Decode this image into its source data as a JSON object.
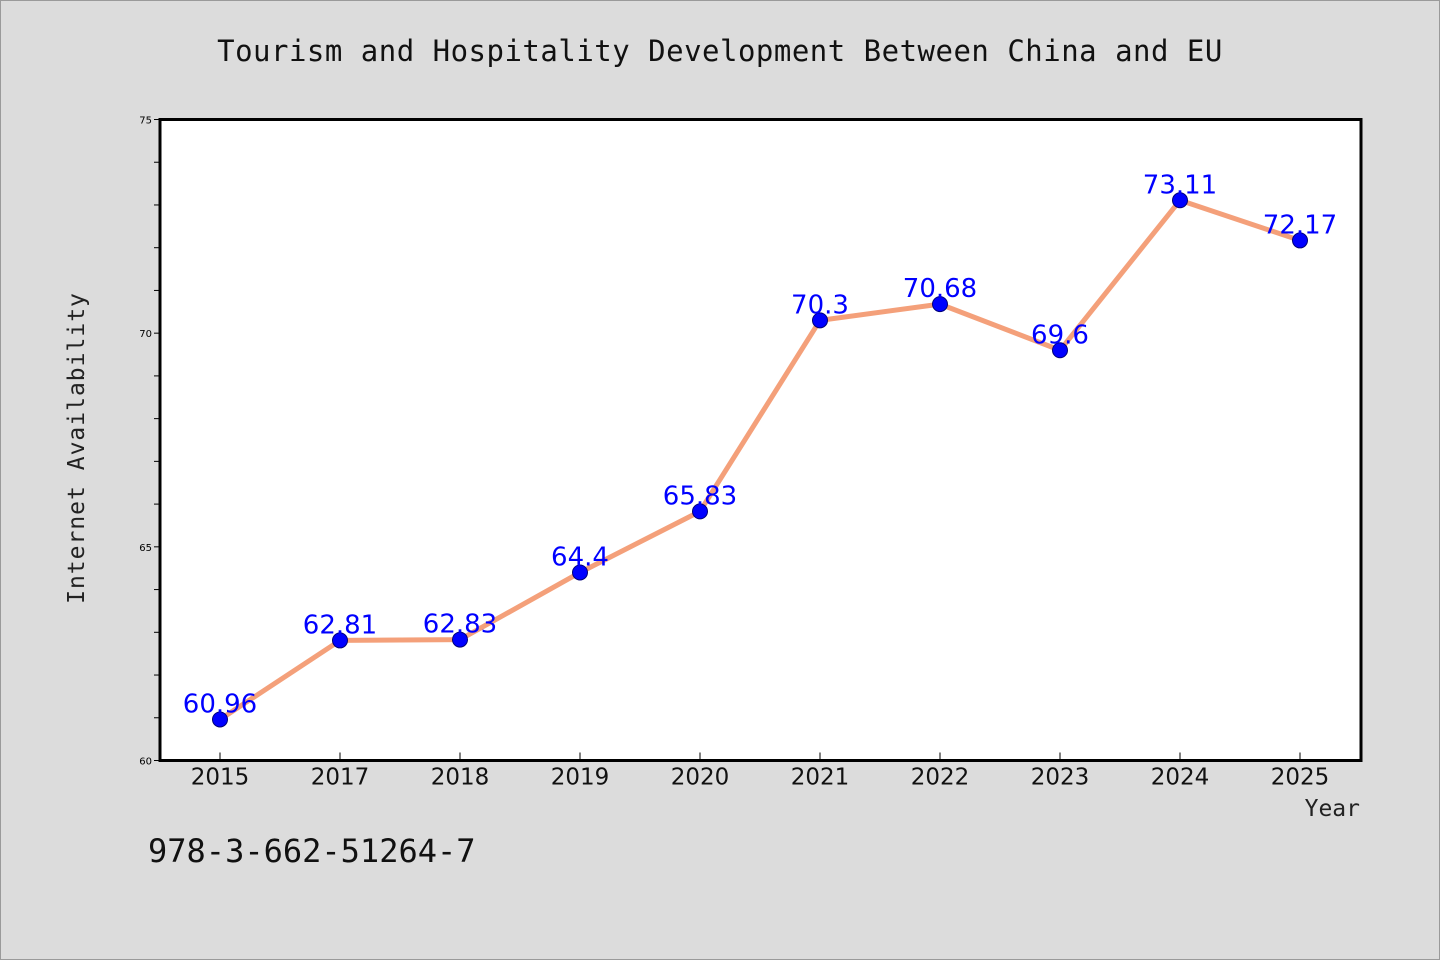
{
  "title": "Tourism and Hospitality Development Between China and EU",
  "footer_text": "978-3-662-51264-7",
  "chart_data": {
    "type": "line",
    "title": "Tourism and Hospitality Development Between China and EU",
    "xlabel": "Year",
    "ylabel": "Internet Availability",
    "categories": [
      "2015",
      "2017",
      "2018",
      "2019",
      "2020",
      "2021",
      "2022",
      "2023",
      "2024",
      "2025"
    ],
    "values": [
      60.96,
      62.81,
      62.83,
      64.4,
      65.83,
      70.3,
      70.68,
      69.6,
      73.11,
      72.17
    ],
    "data_labels": [
      "60.96",
      "62.81",
      "62.83",
      "64.4",
      "65.83",
      "70.3",
      "70.68",
      "69.6",
      "73.11",
      "72.17"
    ],
    "ylim": [
      60,
      75
    ],
    "yticks": [
      60,
      65,
      70,
      75
    ],
    "grid": false,
    "legend": "none",
    "colors": {
      "line": "#f4a07a",
      "marker": "#0000ff",
      "data_label": "#0000ff",
      "plot_background": "#ffffff",
      "page_background": "#dcdcdc"
    }
  }
}
